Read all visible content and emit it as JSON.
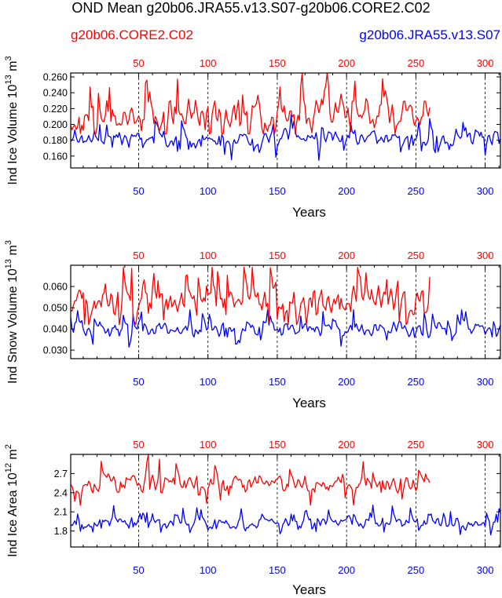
{
  "title": "OND Mean g20b06.JRA55.v13.S07-g20b06.CORE2.C02",
  "legend": {
    "left_label": "g20b06.CORE2.C02",
    "left_color": "#ff0000",
    "right_label": "g20b06.JRA55.v13.S07",
    "right_color": "#0000ff"
  },
  "colors": {
    "core2": "#ff0000",
    "jra55": "#0000ff",
    "axis": "#000000"
  },
  "chart_data": [
    {
      "type": "line",
      "id": "ice_volume",
      "ylabel": {
        "main": "Ind Ice Volume 10",
        "exp": "13",
        "unit": " m",
        "unit_exp": "3"
      },
      "xlabel": "Years",
      "xlim": [
        1,
        311
      ],
      "ylim": [
        0.145,
        0.265
      ],
      "yticks": [
        0.16,
        0.18,
        0.2,
        0.22,
        0.24,
        0.26
      ],
      "ytick_labels": [
        "0.160",
        "0.180",
        "0.200",
        "0.220",
        "0.240",
        "0.260"
      ],
      "xticks": [
        50,
        100,
        150,
        200,
        250,
        300
      ],
      "xtick_labels": [
        "50",
        "100",
        "150",
        "200",
        "250",
        "300"
      ],
      "ref_lines_x": [
        50,
        100,
        150,
        200,
        250,
        300
      ],
      "series": [
        {
          "name": "g20b06.CORE2.C02",
          "color": "#ff0000",
          "n": 260,
          "base": 0.212,
          "amp": 0.024,
          "min": 0.188,
          "max": 0.265,
          "seed": 11
        },
        {
          "name": "g20b06.JRA55.v13.S07",
          "color": "#0000ff",
          "n": 311,
          "base": 0.183,
          "amp": 0.012,
          "min": 0.148,
          "max": 0.212,
          "seed": 23
        }
      ]
    },
    {
      "type": "line",
      "id": "snow_volume",
      "ylabel": {
        "main": "Ind Snow Volume 10",
        "exp": "13",
        "unit": " m",
        "unit_exp": "3"
      },
      "xlabel": "Years",
      "xlim": [
        1,
        311
      ],
      "ylim": [
        0.026,
        0.07
      ],
      "yticks": [
        0.03,
        0.04,
        0.05,
        0.06
      ],
      "ytick_labels": [
        "0.030",
        "0.040",
        "0.050",
        "0.060"
      ],
      "xticks": [
        50,
        100,
        150,
        200,
        250,
        300
      ],
      "xtick_labels": [
        "50",
        "100",
        "150",
        "200",
        "250",
        "300"
      ],
      "ref_lines_x": [
        50,
        100,
        150,
        200,
        250,
        300
      ],
      "series": [
        {
          "name": "g20b06.CORE2.C02",
          "color": "#ff0000",
          "n": 260,
          "base": 0.054,
          "amp": 0.0085,
          "min": 0.042,
          "max": 0.069,
          "seed": 37
        },
        {
          "name": "g20b06.JRA55.v13.S07",
          "color": "#0000ff",
          "n": 311,
          "base": 0.04,
          "amp": 0.0042,
          "min": 0.027,
          "max": 0.049,
          "seed": 41
        }
      ]
    },
    {
      "type": "line",
      "id": "ice_area",
      "ylabel": {
        "main": "Ind Ice Area 10",
        "exp": "12",
        "unit": " m",
        "unit_exp": "2"
      },
      "xlabel": "Years",
      "xlim": [
        1,
        311
      ],
      "ylim": [
        1.55,
        3.0
      ],
      "yticks": [
        1.8,
        2.1,
        2.4,
        2.7
      ],
      "ytick_labels": [
        "1.8",
        "2.1",
        "2.4",
        "2.7"
      ],
      "xticks": [
        50,
        100,
        150,
        200,
        250,
        300
      ],
      "xtick_labels": [
        "50",
        "100",
        "150",
        "200",
        "250",
        "300"
      ],
      "ref_lines_x": [
        50,
        100,
        150,
        200,
        250,
        300
      ],
      "series": [
        {
          "name": "g20b06.CORE2.C02",
          "color": "#ff0000",
          "n": 260,
          "base": 2.55,
          "amp": 0.17,
          "min": 2.1,
          "max": 3.0,
          "seed": 53
        },
        {
          "name": "g20b06.JRA55.v13.S07",
          "color": "#0000ff",
          "n": 311,
          "base": 1.93,
          "amp": 0.1,
          "min": 1.62,
          "max": 2.25,
          "seed": 67
        }
      ]
    }
  ]
}
